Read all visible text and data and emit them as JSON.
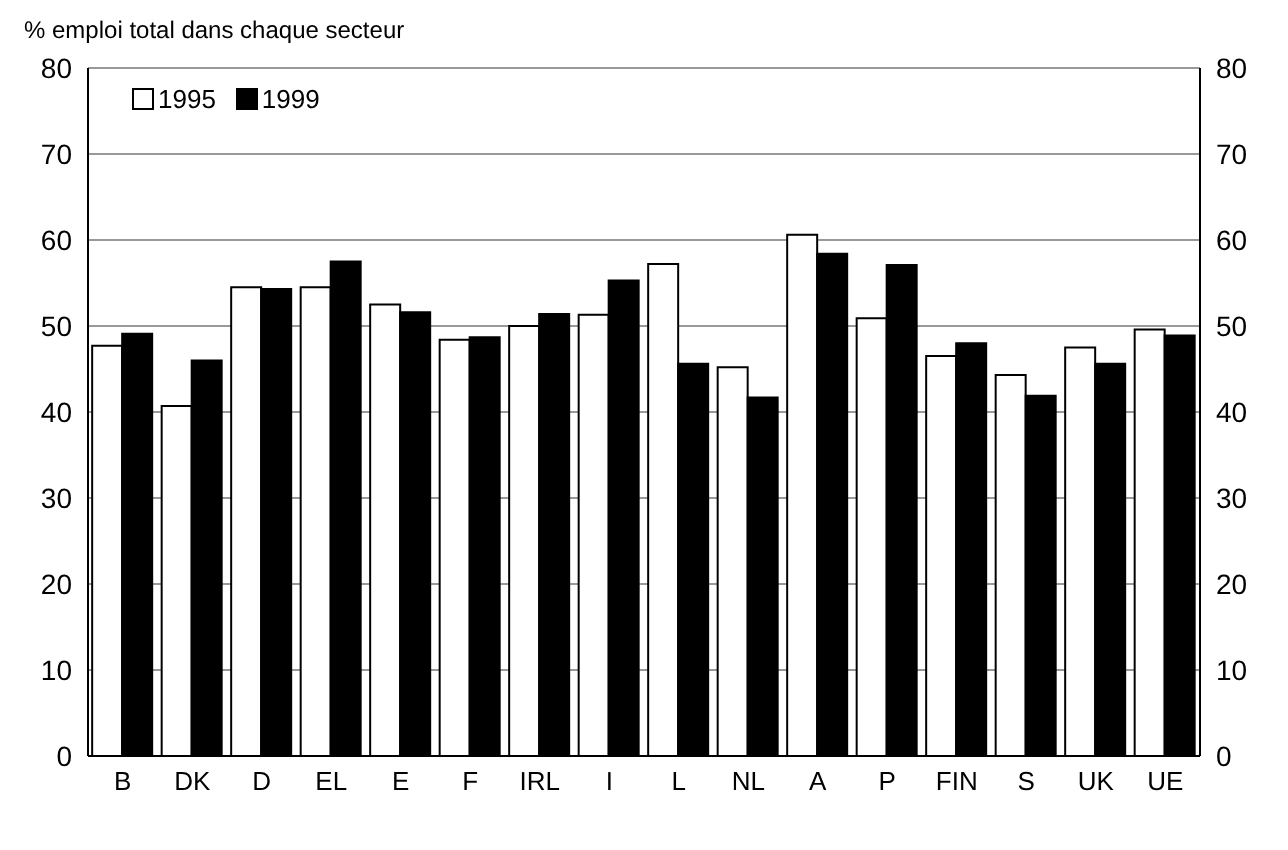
{
  "chart_data": {
    "type": "bar",
    "ylabel": "% emploi total dans chaque secteur",
    "categories": [
      "B",
      "DK",
      "D",
      "EL",
      "E",
      "F",
      "IRL",
      "I",
      "L",
      "NL",
      "A",
      "P",
      "FIN",
      "S",
      "UK",
      "UE"
    ],
    "series": [
      {
        "name": "1995",
        "color": "#ffffff",
        "values": [
          47.7,
          40.7,
          54.5,
          54.5,
          52.5,
          48.4,
          50.0,
          51.3,
          57.2,
          45.2,
          60.6,
          50.9,
          46.5,
          44.3,
          47.5,
          49.6
        ]
      },
      {
        "name": "1999",
        "color": "#000000",
        "values": [
          49.1,
          46.0,
          54.3,
          57.5,
          51.6,
          48.7,
          51.4,
          55.3,
          45.6,
          41.7,
          58.4,
          57.1,
          48.0,
          41.9,
          45.6,
          48.9
        ]
      }
    ],
    "ylim": [
      0,
      80
    ],
    "yticks": [
      0,
      10,
      20,
      30,
      40,
      50,
      60,
      70,
      80
    ],
    "y2lim": [
      0,
      80
    ],
    "y2ticks": [
      0,
      10,
      20,
      30,
      40,
      50,
      60,
      70,
      80
    ],
    "grid": "y",
    "legend": "top left"
  }
}
